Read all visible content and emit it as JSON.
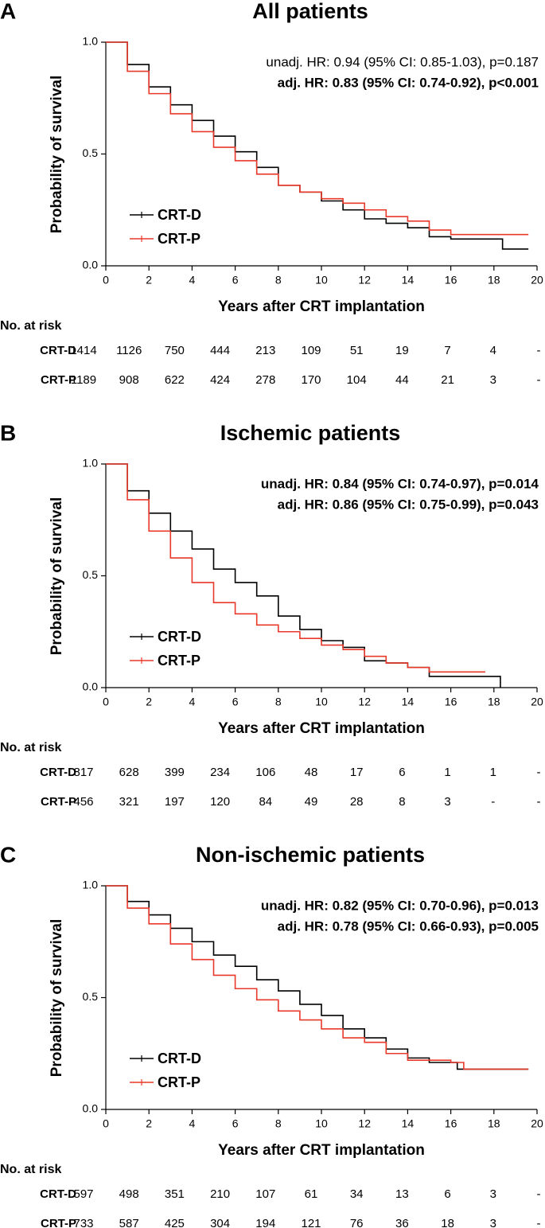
{
  "chart_data": [
    {
      "type": "line",
      "step": true,
      "panel": "A",
      "title": "All patients",
      "annotations": [
        {
          "text": "unadj. HR: 0.94 (95% CI: 0.85-1.03), p=0.187",
          "bold": false
        },
        {
          "text": "adj. HR: 0.83 (95% CI: 0.74-0.92), p<0.001",
          "bold": true
        }
      ],
      "xlabel": "Years after CRT implantation",
      "ylabel": "Probability of survival",
      "xlim": [
        0,
        20
      ],
      "ylim": [
        0,
        1
      ],
      "xticks": [
        0,
        2,
        4,
        6,
        8,
        10,
        12,
        14,
        16,
        18,
        20
      ],
      "yticks": [
        {
          "value": 0,
          "label": "0.0"
        },
        {
          "value": 0.5,
          "label": "0.5"
        },
        {
          "value": 1,
          "label": "1.0"
        }
      ],
      "series": [
        {
          "name": "CRT-D",
          "color": "#000000",
          "x": [
            0,
            1,
            2,
            3,
            4,
            5,
            6,
            7,
            8,
            9,
            10,
            11,
            12,
            13,
            14,
            15,
            16,
            18.4,
            19.6
          ],
          "values": [
            1,
            0.9,
            0.8,
            0.72,
            0.65,
            0.58,
            0.51,
            0.44,
            0.36,
            0.33,
            0.29,
            0.25,
            0.21,
            0.19,
            0.17,
            0.13,
            0.12,
            0.075,
            0.075
          ]
        },
        {
          "name": "CRT-P",
          "color": "#e8392a",
          "x": [
            0,
            1,
            2,
            3,
            4,
            5,
            6,
            7,
            8,
            9,
            10,
            11,
            12,
            13,
            14,
            15,
            16,
            19.6
          ],
          "values": [
            1,
            0.87,
            0.77,
            0.68,
            0.6,
            0.53,
            0.47,
            0.41,
            0.36,
            0.33,
            0.3,
            0.28,
            0.25,
            0.22,
            0.2,
            0.16,
            0.14,
            0.14
          ]
        }
      ],
      "risk_table": {
        "title": "No. at risk",
        "rows": [
          {
            "name": "CRT-D",
            "color": "#000000",
            "values": [
              1414,
              1126,
              750,
              444,
              213,
              109,
              51,
              19,
              7,
              4,
              "-"
            ]
          },
          {
            "name": "CRT-P",
            "color": "#e8392a",
            "values": [
              1189,
              908,
              622,
              424,
              278,
              170,
              104,
              44,
              21,
              3,
              "-"
            ]
          }
        ]
      }
    },
    {
      "type": "line",
      "step": true,
      "panel": "B",
      "title": "Ischemic patients",
      "annotations": [
        {
          "text": "unadj. HR: 0.84 (95% CI: 0.74-0.97), p=0.014",
          "bold": true
        },
        {
          "text": "adj. HR: 0.86 (95% CI: 0.75-0.99), p=0.043",
          "bold": true
        }
      ],
      "xlabel": "Years after CRT implantation",
      "ylabel": "Probability of survival",
      "xlim": [
        0,
        20
      ],
      "ylim": [
        0,
        1
      ],
      "xticks": [
        0,
        2,
        4,
        6,
        8,
        10,
        12,
        14,
        16,
        18,
        20
      ],
      "yticks": [
        {
          "value": 0,
          "label": "0.0"
        },
        {
          "value": 0.5,
          "label": "0.5"
        },
        {
          "value": 1,
          "label": "1.0"
        }
      ],
      "series": [
        {
          "name": "CRT-D",
          "color": "#000000",
          "x": [
            0,
            1,
            2,
            3,
            4,
            5,
            6,
            7,
            8,
            9,
            10,
            11,
            12,
            13,
            14,
            15,
            18.3,
            18.3
          ],
          "values": [
            1,
            0.88,
            0.78,
            0.7,
            0.62,
            0.53,
            0.47,
            0.41,
            0.32,
            0.26,
            0.21,
            0.18,
            0.12,
            0.11,
            0.09,
            0.05,
            0.05,
            0
          ]
        },
        {
          "name": "CRT-P",
          "color": "#e8392a",
          "x": [
            0,
            1,
            2,
            3,
            4,
            5,
            6,
            7,
            8,
            9,
            10,
            11,
            12,
            13,
            14,
            15,
            17.6
          ],
          "values": [
            1,
            0.84,
            0.7,
            0.58,
            0.47,
            0.38,
            0.33,
            0.28,
            0.25,
            0.22,
            0.19,
            0.17,
            0.14,
            0.11,
            0.09,
            0.07,
            0.07
          ]
        }
      ],
      "risk_table": {
        "title": "No. at risk",
        "rows": [
          {
            "name": "CRT-D",
            "color": "#000000",
            "values": [
              817,
              628,
              399,
              234,
              106,
              48,
              17,
              6,
              1,
              1,
              "-"
            ]
          },
          {
            "name": "CRT-P",
            "color": "#e8392a",
            "values": [
              456,
              321,
              197,
              120,
              84,
              49,
              28,
              8,
              3,
              "-",
              "-"
            ]
          }
        ]
      }
    },
    {
      "type": "line",
      "step": true,
      "panel": "C",
      "title": "Non-ischemic patients",
      "annotations": [
        {
          "text": "unadj. HR: 0.82 (95% CI: 0.70-0.96), p=0.013",
          "bold": true
        },
        {
          "text": "adj. HR: 0.78 (95% CI: 0.66-0.93), p=0.005",
          "bold": true
        }
      ],
      "xlabel": "Years after CRT implantation",
      "ylabel": "Probability of survival",
      "xlim": [
        0,
        20
      ],
      "ylim": [
        0,
        1
      ],
      "xticks": [
        0,
        2,
        4,
        6,
        8,
        10,
        12,
        14,
        16,
        18,
        20
      ],
      "yticks": [
        {
          "value": 0,
          "label": "0.0"
        },
        {
          "value": 0.5,
          "label": "0.5"
        },
        {
          "value": 1,
          "label": "1.0"
        }
      ],
      "series": [
        {
          "name": "CRT-D",
          "color": "#000000",
          "x": [
            0,
            1,
            2,
            3,
            4,
            5,
            6,
            7,
            8,
            9,
            10,
            11,
            12,
            13,
            14,
            15,
            16.3,
            19.6
          ],
          "values": [
            1,
            0.93,
            0.87,
            0.81,
            0.75,
            0.69,
            0.64,
            0.58,
            0.53,
            0.47,
            0.42,
            0.36,
            0.32,
            0.27,
            0.23,
            0.21,
            0.18,
            0.18
          ]
        },
        {
          "name": "CRT-P",
          "color": "#e8392a",
          "x": [
            0,
            1,
            2,
            3,
            4,
            5,
            6,
            7,
            8,
            9,
            10,
            11,
            12,
            13,
            14,
            16,
            16.6,
            19.6
          ],
          "values": [
            1,
            0.9,
            0.83,
            0.74,
            0.67,
            0.6,
            0.54,
            0.49,
            0.44,
            0.4,
            0.36,
            0.32,
            0.3,
            0.25,
            0.22,
            0.21,
            0.18,
            0.18
          ]
        }
      ],
      "risk_table": {
        "title": "No. at risk",
        "rows": [
          {
            "name": "CRT-D",
            "color": "#000000",
            "values": [
              597,
              498,
              351,
              210,
              107,
              61,
              34,
              13,
              6,
              3,
              "-"
            ]
          },
          {
            "name": "CRT-P",
            "color": "#e8392a",
            "values": [
              733,
              587,
              425,
              304,
              194,
              121,
              76,
              36,
              18,
              3,
              "-"
            ]
          }
        ]
      }
    }
  ]
}
